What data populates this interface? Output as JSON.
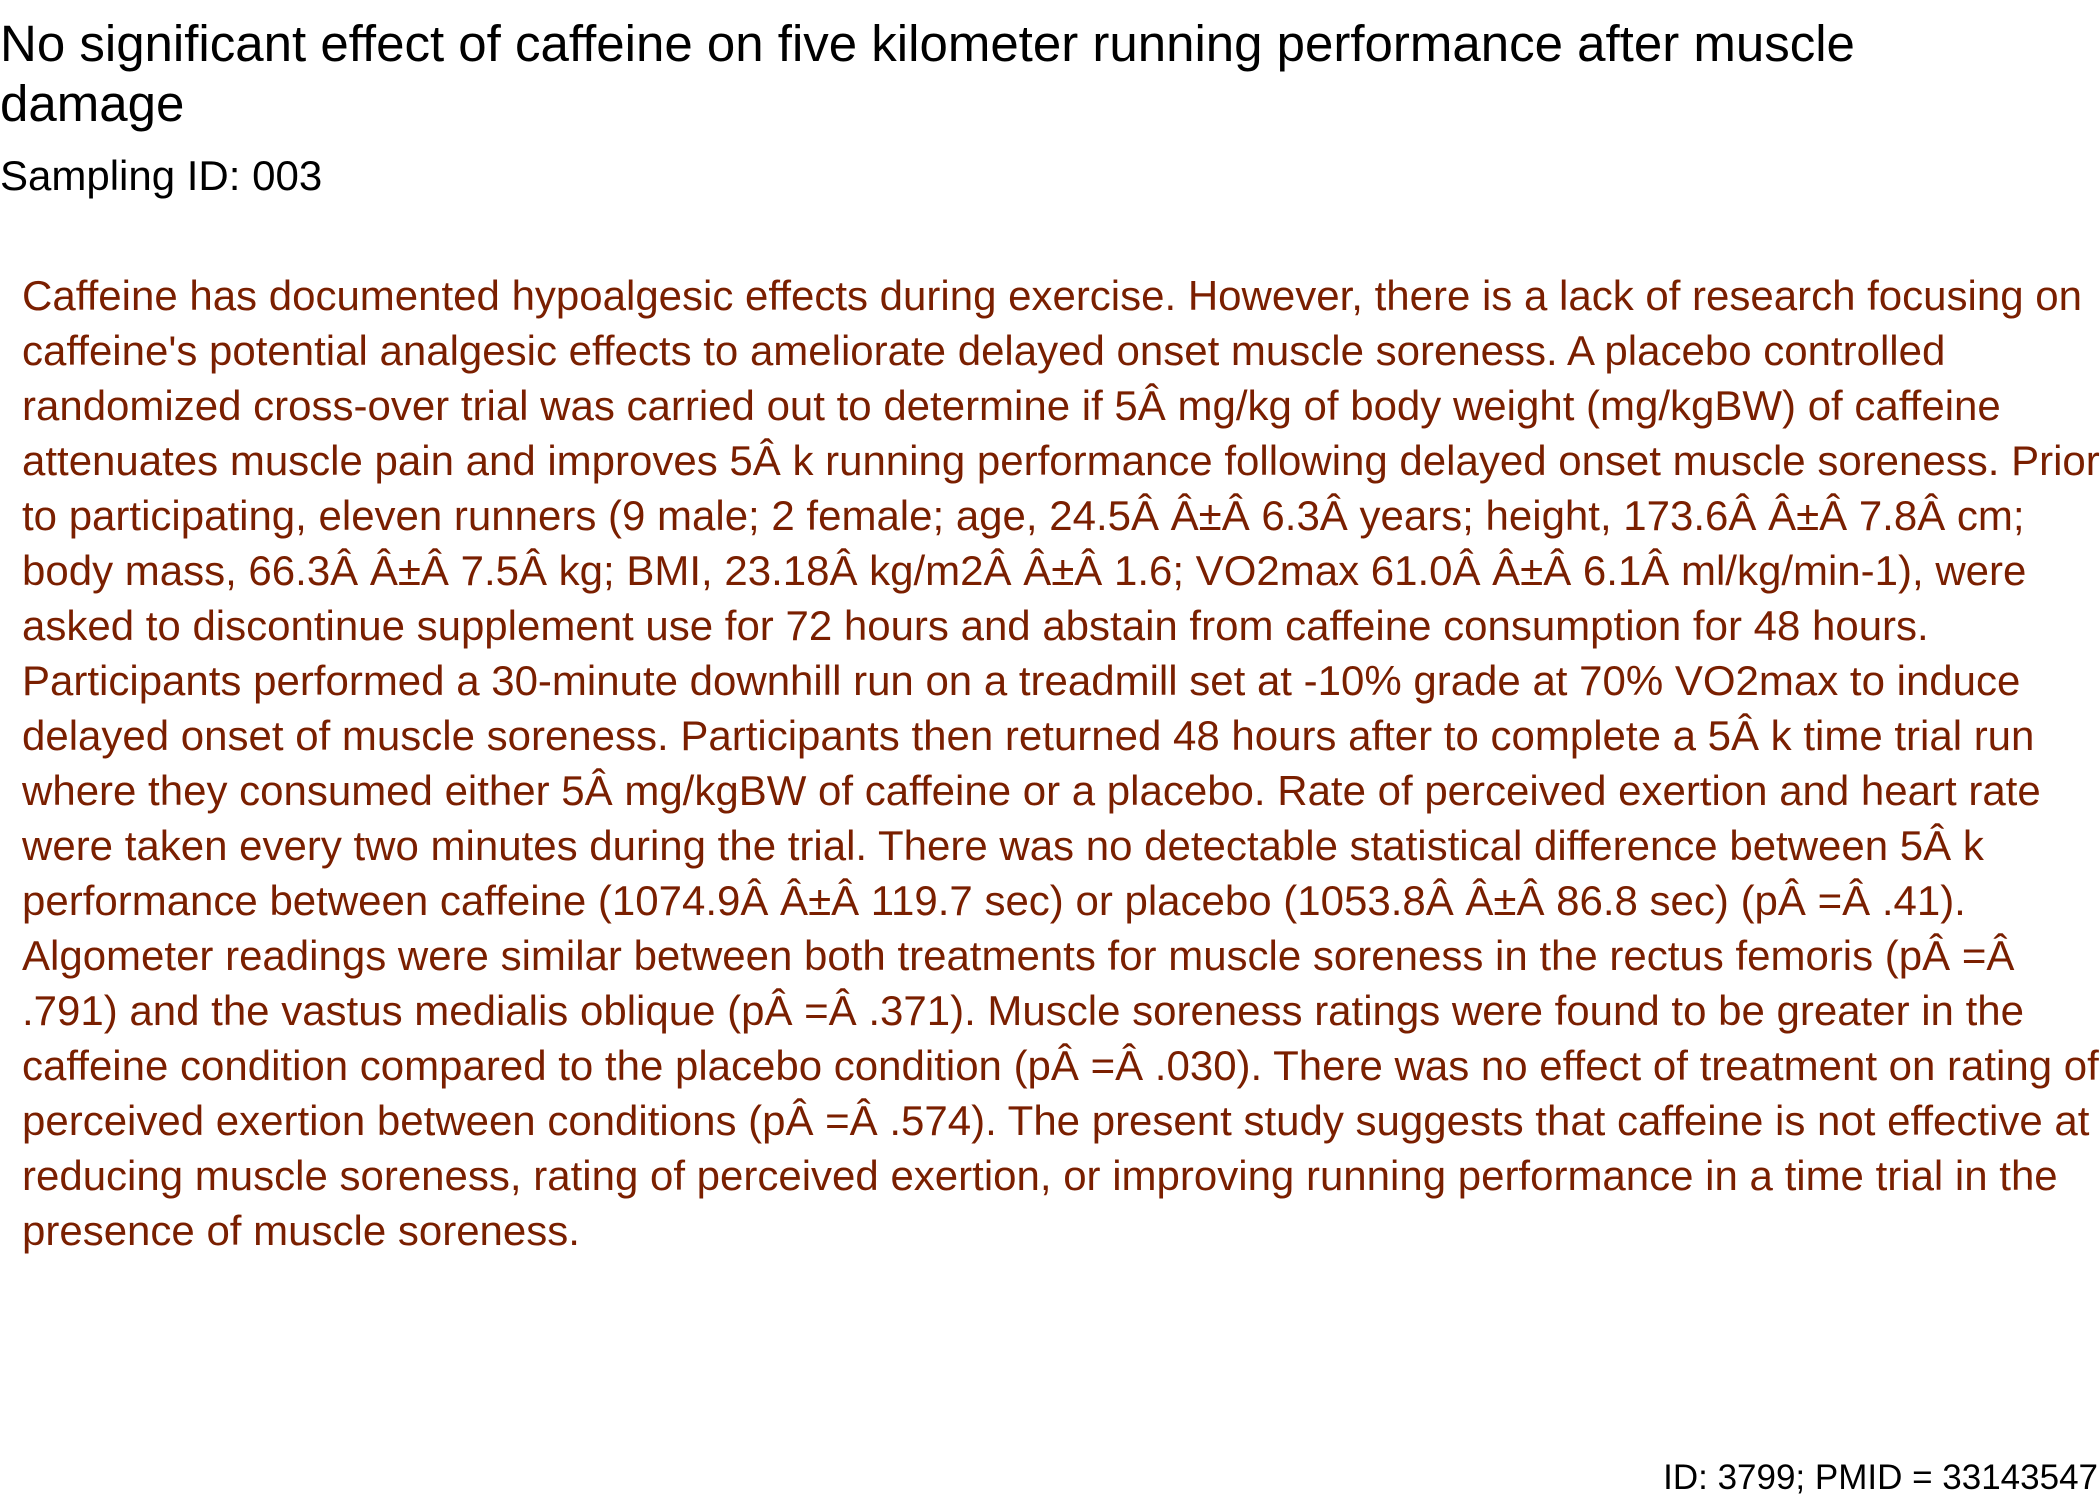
{
  "document": {
    "title": "No significant effect of caffeine on five kilometer running performance after muscle damage",
    "sampling_id": "Sampling ID: 003",
    "abstract": "Caffeine has documented hypoalgesic effects during exercise. However, there is a lack of research focusing on caffeine's potential analgesic effects to ameliorate delayed onset muscle soreness. A placebo controlled randomized cross-over trial was carried out to determine if 5Â mg/kg of body weight (mg/kgBW) of caffeine attenuates muscle pain and improves 5Â k running performance following delayed onset muscle soreness. Prior to participating, eleven runners (9 male; 2 female; age, 24.5Â Â±Â 6.3Â years; height, 173.6Â Â±Â 7.8Â cm; body mass, 66.3Â Â±Â 7.5Â kg; BMI, 23.18Â kg/m2Â Â±Â 1.6; VO2max 61.0Â Â±Â 6.1Â ml/kg/min-1), were asked to discontinue supplement use for 72 hours and abstain from caffeine consumption for 48 hours. Participants performed a 30-minute downhill run on a treadmill set at -10% grade at 70% VO2max to induce delayed onset of muscle soreness. Participants then returned 48 hours after to complete a 5Â k time trial run where they consumed either 5Â mg/kgBW of caffeine or a placebo. Rate of perceived exertion and heart rate were taken every two minutes during the trial. There was no detectable statistical difference between 5Â k performance between caffeine (1074.9Â Â±Â 119.7 sec) or placebo (1053.8Â Â±Â 86.8 sec) (pÂ =Â .41). Algometer readings were similar between both treatments for muscle soreness in the rectus femoris (pÂ =Â .791) and the vastus medialis oblique (pÂ =Â .371). Muscle soreness ratings were found to be greater in the caffeine condition compared to the placebo condition (pÂ =Â .030). There was no effect of treatment on rating of perceived exertion between conditions (pÂ =Â .574). The present study suggests that caffeine is not effective at reducing muscle soreness, rating of perceived exertion, or improving running performance in a time trial in the presence of muscle soreness.",
    "footer_id": "ID: 3799; PMID = 33143547"
  },
  "colors": {
    "abstract_text": "#7a1f00",
    "heading_text": "#000000",
    "background": "#ffffff"
  }
}
